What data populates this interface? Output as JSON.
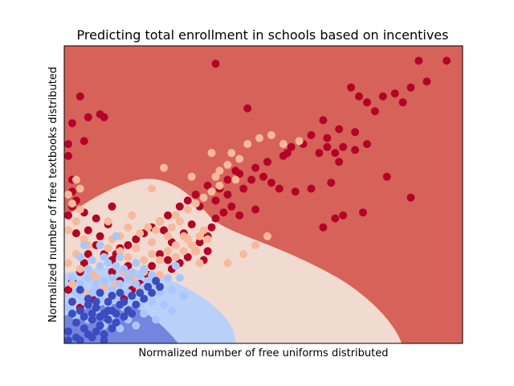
{
  "chart_data": {
    "type": "scatter",
    "title": "Predicting total enrollment in schools based on incentives",
    "xlabel": "Normalized number of free uniforms distributed",
    "ylabel": "Normalized number of free textbooks distributed",
    "xlim": [
      0,
      1
    ],
    "ylim": [
      0,
      1
    ],
    "ticks_shown": false,
    "grid": false,
    "legend": "none",
    "background": "decision-regions",
    "class_colors": {
      "0": "#3b4cc0",
      "1": "#aac7fd",
      "2": "#f7b89c",
      "3": "#b40426"
    },
    "region_colors": {
      "0": "#7385de",
      "1": "#b9d0f9",
      "2": "#f1dad0",
      "3": "#d6625a"
    },
    "series": [
      {
        "class": 3,
        "points": [
          [
            0.38,
            0.94
          ],
          [
            0.96,
            0.95
          ],
          [
            0.89,
            0.95
          ],
          [
            0.04,
            0.83
          ],
          [
            0.09,
            0.77
          ],
          [
            0.1,
            0.76
          ],
          [
            0.06,
            0.76
          ],
          [
            0.02,
            0.74
          ],
          [
            0.05,
            0.68
          ],
          [
            0.01,
            0.67
          ],
          [
            0.01,
            0.63
          ],
          [
            0.02,
            0.55
          ],
          [
            0.02,
            0.51
          ],
          [
            0.03,
            0.48
          ],
          [
            0.02,
            0.46
          ],
          [
            0.01,
            0.43
          ],
          [
            0.46,
            0.79
          ],
          [
            0.72,
            0.86
          ],
          [
            0.74,
            0.83
          ],
          [
            0.76,
            0.81
          ],
          [
            0.8,
            0.83
          ],
          [
            0.83,
            0.84
          ],
          [
            0.85,
            0.81
          ],
          [
            0.87,
            0.86
          ],
          [
            0.91,
            0.88
          ],
          [
            0.78,
            0.78
          ],
          [
            0.65,
            0.75
          ],
          [
            0.69,
            0.72
          ],
          [
            0.73,
            0.71
          ],
          [
            0.66,
            0.69
          ],
          [
            0.62,
            0.7
          ],
          [
            0.6,
            0.67
          ],
          [
            0.57,
            0.66
          ],
          [
            0.55,
            0.63
          ],
          [
            0.51,
            0.61
          ],
          [
            0.48,
            0.59
          ],
          [
            0.44,
            0.57
          ],
          [
            0.41,
            0.55
          ],
          [
            0.39,
            0.52
          ],
          [
            0.36,
            0.53
          ],
          [
            0.33,
            0.5
          ],
          [
            0.31,
            0.48
          ],
          [
            0.29,
            0.46
          ],
          [
            0.26,
            0.43
          ],
          [
            0.24,
            0.41
          ],
          [
            0.22,
            0.39
          ],
          [
            0.2,
            0.37
          ],
          [
            0.18,
            0.35
          ],
          [
            0.16,
            0.33
          ],
          [
            0.14,
            0.32
          ],
          [
            0.13,
            0.3
          ],
          [
            0.12,
            0.28
          ],
          [
            0.66,
            0.66
          ],
          [
            0.68,
            0.64
          ],
          [
            0.7,
            0.66
          ],
          [
            0.73,
            0.65
          ],
          [
            0.76,
            0.67
          ],
          [
            0.69,
            0.61
          ],
          [
            0.64,
            0.64
          ],
          [
            0.56,
            0.64
          ],
          [
            0.5,
            0.56
          ],
          [
            0.52,
            0.54
          ],
          [
            0.54,
            0.52
          ],
          [
            0.58,
            0.51
          ],
          [
            0.62,
            0.52
          ],
          [
            0.67,
            0.54
          ],
          [
            0.81,
            0.56
          ],
          [
            0.87,
            0.49
          ],
          [
            0.75,
            0.44
          ],
          [
            0.7,
            0.43
          ],
          [
            0.68,
            0.42
          ],
          [
            0.65,
            0.39
          ],
          [
            0.48,
            0.45
          ],
          [
            0.44,
            0.43
          ],
          [
            0.42,
            0.46
          ],
          [
            0.4,
            0.44
          ],
          [
            0.38,
            0.42
          ],
          [
            0.37,
            0.39
          ],
          [
            0.36,
            0.36
          ],
          [
            0.34,
            0.34
          ],
          [
            0.33,
            0.31
          ],
          [
            0.31,
            0.29
          ],
          [
            0.29,
            0.27
          ],
          [
            0.27,
            0.25
          ],
          [
            0.26,
            0.28
          ],
          [
            0.24,
            0.3
          ],
          [
            0.22,
            0.26
          ],
          [
            0.21,
            0.23
          ],
          [
            0.19,
            0.2
          ],
          [
            0.17,
            0.18
          ],
          [
            0.15,
            0.15
          ],
          [
            0.14,
            0.21
          ],
          [
            0.12,
            0.24
          ],
          [
            0.16,
            0.26
          ],
          [
            0.35,
            0.28
          ],
          [
            0.36,
            0.31
          ],
          [
            0.12,
            0.46
          ],
          [
            0.11,
            0.4
          ],
          [
            0.09,
            0.36
          ],
          [
            0.08,
            0.33
          ],
          [
            0.06,
            0.3
          ],
          [
            0.05,
            0.27
          ],
          [
            0.04,
            0.24
          ],
          [
            0.02,
            0.21
          ],
          [
            0.01,
            0.18
          ],
          [
            0.06,
            0.38
          ],
          [
            0.08,
            0.42
          ],
          [
            0.03,
            0.37
          ],
          [
            0.05,
            0.44
          ],
          [
            0.1,
            0.3
          ],
          [
            0.07,
            0.15
          ],
          [
            0.04,
            0.12
          ],
          [
            0.25,
            0.38
          ],
          [
            0.27,
            0.34
          ],
          [
            0.3,
            0.37
          ],
          [
            0.32,
            0.4
          ],
          [
            0.34,
            0.46
          ],
          [
            0.38,
            0.48
          ],
          [
            0.41,
            0.5
          ],
          [
            0.45,
            0.52
          ],
          [
            0.47,
            0.55
          ],
          [
            0.43,
            0.58
          ]
        ]
      },
      {
        "class": 2,
        "points": [
          [
            0.03,
            0.55
          ],
          [
            0.04,
            0.52
          ],
          [
            0.01,
            0.5
          ],
          [
            0.02,
            0.47
          ],
          [
            0.04,
            0.45
          ],
          [
            0.03,
            0.41
          ],
          [
            0.01,
            0.38
          ],
          [
            0.05,
            0.35
          ],
          [
            0.06,
            0.33
          ],
          [
            0.03,
            0.3
          ],
          [
            0.01,
            0.27
          ],
          [
            0.04,
            0.25
          ],
          [
            0.07,
            0.23
          ],
          [
            0.02,
            0.2
          ],
          [
            0.05,
            0.17
          ],
          [
            0.02,
            0.14
          ],
          [
            0.12,
            0.35
          ],
          [
            0.11,
            0.32
          ],
          [
            0.14,
            0.31
          ],
          [
            0.16,
            0.29
          ],
          [
            0.18,
            0.27
          ],
          [
            0.2,
            0.28
          ],
          [
            0.22,
            0.3
          ],
          [
            0.24,
            0.28
          ],
          [
            0.26,
            0.31
          ],
          [
            0.28,
            0.33
          ],
          [
            0.3,
            0.31
          ],
          [
            0.32,
            0.33
          ],
          [
            0.34,
            0.36
          ],
          [
            0.3,
            0.36
          ],
          [
            0.26,
            0.36
          ],
          [
            0.22,
            0.34
          ],
          [
            0.18,
            0.32
          ],
          [
            0.15,
            0.24
          ],
          [
            0.17,
            0.22
          ],
          [
            0.13,
            0.2
          ],
          [
            0.19,
            0.18
          ],
          [
            0.09,
            0.26
          ],
          [
            0.08,
            0.22
          ],
          [
            0.1,
            0.19
          ],
          [
            0.12,
            0.16
          ],
          [
            0.2,
            0.24
          ],
          [
            0.24,
            0.23
          ],
          [
            0.28,
            0.29
          ],
          [
            0.31,
            0.35
          ],
          [
            0.35,
            0.38
          ],
          [
            0.36,
            0.35
          ],
          [
            0.33,
            0.31
          ],
          [
            0.29,
            0.41
          ],
          [
            0.23,
            0.38
          ],
          [
            0.17,
            0.43
          ],
          [
            0.16,
            0.39
          ],
          [
            0.11,
            0.41
          ],
          [
            0.38,
            0.56
          ],
          [
            0.39,
            0.58
          ],
          [
            0.22,
            0.52
          ],
          [
            0.25,
            0.59
          ],
          [
            0.32,
            0.56
          ],
          [
            0.37,
            0.64
          ],
          [
            0.42,
            0.64
          ],
          [
            0.46,
            0.67
          ],
          [
            0.49,
            0.69
          ],
          [
            0.52,
            0.7
          ],
          [
            0.59,
            0.68
          ],
          [
            0.55,
            0.67
          ],
          [
            0.44,
            0.62
          ],
          [
            0.41,
            0.6
          ],
          [
            0.39,
            0.53
          ],
          [
            0.43,
            0.55
          ],
          [
            0.37,
            0.51
          ],
          [
            0.35,
            0.49
          ],
          [
            0.33,
            0.47
          ],
          [
            0.31,
            0.45
          ],
          [
            0.28,
            0.43
          ],
          [
            0.45,
            0.3
          ],
          [
            0.48,
            0.33
          ],
          [
            0.51,
            0.36
          ],
          [
            0.41,
            0.27
          ],
          [
            0.34,
            0.27
          ],
          [
            0.21,
            0.39
          ],
          [
            0.24,
            0.41
          ],
          [
            0.27,
            0.39
          ],
          [
            0.14,
            0.36
          ],
          [
            0.19,
            0.37
          ]
        ]
      },
      {
        "class": 1,
        "points": [
          [
            0.04,
            0.29
          ],
          [
            0.07,
            0.28
          ],
          [
            0.09,
            0.26
          ],
          [
            0.11,
            0.27
          ],
          [
            0.13,
            0.26
          ],
          [
            0.15,
            0.25
          ],
          [
            0.17,
            0.24
          ],
          [
            0.19,
            0.23
          ],
          [
            0.21,
            0.21
          ],
          [
            0.23,
            0.2
          ],
          [
            0.2,
            0.25
          ],
          [
            0.18,
            0.2
          ],
          [
            0.16,
            0.22
          ],
          [
            0.14,
            0.2
          ],
          [
            0.12,
            0.22
          ],
          [
            0.1,
            0.21
          ],
          [
            0.08,
            0.2
          ],
          [
            0.06,
            0.22
          ],
          [
            0.04,
            0.2
          ],
          [
            0.02,
            0.22
          ],
          [
            0.03,
            0.17
          ],
          [
            0.05,
            0.14
          ],
          [
            0.07,
            0.17
          ],
          [
            0.09,
            0.15
          ],
          [
            0.11,
            0.13
          ],
          [
            0.13,
            0.15
          ],
          [
            0.15,
            0.12
          ],
          [
            0.17,
            0.15
          ],
          [
            0.19,
            0.13
          ],
          [
            0.22,
            0.14
          ],
          [
            0.24,
            0.17
          ],
          [
            0.26,
            0.22
          ],
          [
            0.28,
            0.26
          ],
          [
            0.18,
            0.27
          ],
          [
            0.14,
            0.29
          ],
          [
            0.1,
            0.29
          ],
          [
            0.06,
            0.25
          ],
          [
            0.08,
            0.11
          ],
          [
            0.12,
            0.09
          ],
          [
            0.16,
            0.08
          ],
          [
            0.2,
            0.1
          ],
          [
            0.25,
            0.13
          ],
          [
            0.27,
            0.18
          ],
          [
            0.29,
            0.22
          ],
          [
            0.22,
            0.23
          ],
          [
            0.2,
            0.19
          ],
          [
            0.16,
            0.17
          ],
          [
            0.12,
            0.18
          ],
          [
            0.08,
            0.18
          ],
          [
            0.04,
            0.16
          ],
          [
            0.01,
            0.12
          ],
          [
            0.03,
            0.09
          ],
          [
            0.06,
            0.08
          ],
          [
            0.1,
            0.06
          ],
          [
            0.14,
            0.05
          ],
          [
            0.18,
            0.06
          ],
          [
            0.23,
            0.08
          ],
          [
            0.27,
            0.11
          ],
          [
            0.3,
            0.16
          ],
          [
            0.05,
            0.33
          ],
          [
            0.09,
            0.33
          ],
          [
            0.13,
            0.36
          ]
        ]
      },
      {
        "class": 0,
        "points": [
          [
            0.02,
            0.14
          ],
          [
            0.04,
            0.11
          ],
          [
            0.06,
            0.13
          ],
          [
            0.08,
            0.12
          ],
          [
            0.1,
            0.1
          ],
          [
            0.12,
            0.11
          ],
          [
            0.14,
            0.13
          ],
          [
            0.16,
            0.11
          ],
          [
            0.18,
            0.13
          ],
          [
            0.2,
            0.15
          ],
          [
            0.22,
            0.17
          ],
          [
            0.24,
            0.19
          ],
          [
            0.03,
            0.07
          ],
          [
            0.05,
            0.05
          ],
          [
            0.07,
            0.08
          ],
          [
            0.09,
            0.06
          ],
          [
            0.11,
            0.08
          ],
          [
            0.13,
            0.07
          ],
          [
            0.15,
            0.09
          ],
          [
            0.17,
            0.1
          ],
          [
            0.01,
            0.04
          ],
          [
            0.03,
            0.02
          ],
          [
            0.06,
            0.03
          ],
          [
            0.08,
            0.04
          ],
          [
            0.1,
            0.03
          ],
          [
            0.12,
            0.05
          ],
          [
            0.02,
            0.1
          ],
          [
            0.05,
            0.09
          ],
          [
            0.07,
            0.1
          ],
          [
            0.09,
            0.09
          ],
          [
            0.11,
            0.11
          ],
          [
            0.13,
            0.1
          ],
          [
            0.15,
            0.14
          ],
          [
            0.17,
            0.16
          ],
          [
            0.19,
            0.17
          ],
          [
            0.21,
            0.19
          ],
          [
            0.23,
            0.21
          ],
          [
            0.01,
            0.01
          ],
          [
            0.04,
            0.01
          ],
          [
            0.07,
            0.02
          ],
          [
            0.1,
            0.01
          ],
          [
            0.06,
            0.15
          ],
          [
            0.09,
            0.17
          ],
          [
            0.12,
            0.16
          ],
          [
            0.14,
            0.17
          ],
          [
            0.04,
            0.18
          ],
          [
            0.08,
            0.14
          ],
          [
            0.11,
            0.14
          ]
        ]
      }
    ]
  }
}
